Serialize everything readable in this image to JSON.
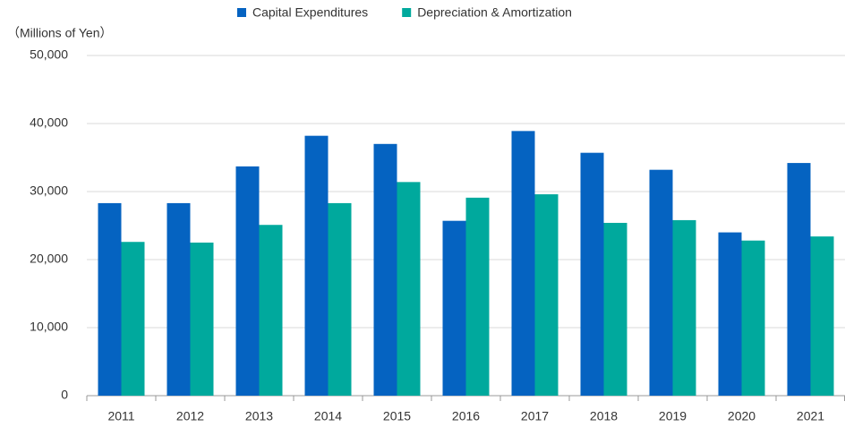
{
  "chart_data": {
    "type": "bar",
    "y_label": "（Millions of Yen）",
    "categories": [
      "2011",
      "2012",
      "2013",
      "2014",
      "2015",
      "2016",
      "2017",
      "2018",
      "2019",
      "2020",
      "2021"
    ],
    "series": [
      {
        "name": "Capital Expenditures",
        "color": "#0563c1",
        "values": [
          28300,
          28300,
          33700,
          38200,
          37000,
          25700,
          38900,
          35700,
          33200,
          24000,
          34200
        ]
      },
      {
        "name": "Depreciation & Amortization",
        "color": "#00a99d",
        "values": [
          22600,
          22500,
          25100,
          28300,
          31400,
          29100,
          29600,
          25400,
          25800,
          22800,
          23400
        ]
      }
    ],
    "ylim": [
      0,
      50000
    ],
    "yticks": [
      0,
      {
        "value": 10000,
        "label": "10,000"
      },
      {
        "value": 20000,
        "label": "20,000"
      },
      {
        "value": 30000,
        "label": "30,000"
      },
      {
        "value": 40000,
        "label": "40,000"
      },
      {
        "value": 50000,
        "label": "50,000"
      }
    ],
    "grid": true,
    "legend": "top"
  }
}
